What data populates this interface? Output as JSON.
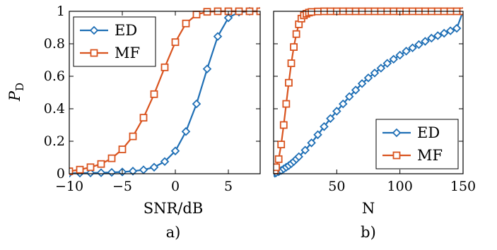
{
  "colors": {
    "ED": "#1f6fb5",
    "MF": "#d9531e"
  },
  "ylabel": "P",
  "ylabel_sub": "D",
  "chart_data": [
    {
      "type": "line",
      "sublabel": "a)",
      "xlabel": "SNR/dB",
      "xlim": [
        -10,
        8
      ],
      "ylim": [
        0,
        1
      ],
      "xticks": [
        -10,
        -5,
        0,
        5
      ],
      "xtick_labels": [
        "−10",
        "−5",
        "0",
        "5"
      ],
      "yticks": [
        0,
        0.2,
        0.4,
        0.6,
        0.8,
        1
      ],
      "ytick_labels": [
        "0",
        "0.2",
        "0.4",
        "0.6",
        "0.8",
        "1"
      ],
      "legend": "top-left",
      "grid": false,
      "series": [
        {
          "name": "ED",
          "marker": "diamond",
          "x": [
            -10,
            -9,
            -8,
            -7,
            -6,
            -5,
            -4,
            -3,
            -2,
            -1,
            0,
            1,
            2,
            3,
            4,
            5,
            6,
            7,
            8
          ],
          "y": [
            0.003,
            0.004,
            0.005,
            0.006,
            0.008,
            0.011,
            0.016,
            0.024,
            0.04,
            0.075,
            0.14,
            0.26,
            0.43,
            0.645,
            0.845,
            0.96,
            0.995,
            1,
            1
          ]
        },
        {
          "name": "MF",
          "marker": "square",
          "x": [
            -10,
            -9,
            -8,
            -7,
            -6,
            -5,
            -4,
            -3,
            -2,
            -1,
            0,
            1,
            2,
            3,
            4,
            5,
            6,
            7,
            8
          ],
          "y": [
            0.015,
            0.025,
            0.04,
            0.06,
            0.095,
            0.15,
            0.23,
            0.345,
            0.49,
            0.655,
            0.81,
            0.925,
            0.98,
            0.997,
            1,
            1,
            1,
            1,
            1
          ]
        }
      ]
    },
    {
      "type": "line",
      "sublabel": "b)",
      "xlabel": "N",
      "xlim": [
        0,
        150
      ],
      "ylim": [
        0,
        1
      ],
      "xticks": [
        50,
        100,
        150
      ],
      "xtick_labels": [
        "50",
        "100",
        "150"
      ],
      "yticks": [
        0,
        0.2,
        0.4,
        0.6,
        0.8,
        1
      ],
      "legend": "bottom-right",
      "grid": false,
      "series": [
        {
          "name": "ED",
          "marker": "diamond",
          "x": [
            1,
            2,
            4,
            6,
            8,
            10,
            12,
            14,
            16,
            18,
            20,
            25,
            30,
            35,
            40,
            45,
            50,
            55,
            60,
            65,
            70,
            75,
            80,
            85,
            90,
            95,
            100,
            105,
            110,
            115,
            120,
            125,
            130,
            135,
            140,
            145,
            150
          ],
          "y": [
            0.003,
            0.006,
            0.012,
            0.02,
            0.03,
            0.04,
            0.05,
            0.062,
            0.075,
            0.09,
            0.105,
            0.145,
            0.19,
            0.24,
            0.29,
            0.34,
            0.385,
            0.43,
            0.475,
            0.515,
            0.555,
            0.59,
            0.62,
            0.65,
            0.68,
            0.705,
            0.73,
            0.755,
            0.775,
            0.795,
            0.815,
            0.835,
            0.85,
            0.865,
            0.88,
            0.895,
            1.0
          ]
        },
        {
          "name": "MF",
          "marker": "square",
          "x": [
            1,
            2,
            4,
            6,
            8,
            10,
            12,
            14,
            16,
            18,
            20,
            22,
            24,
            26,
            28,
            30,
            35,
            40,
            45,
            50,
            55,
            60,
            65,
            70,
            75,
            80,
            85,
            90,
            95,
            100,
            105,
            110,
            115,
            120,
            125,
            130,
            135,
            140,
            145,
            150
          ],
          "y": [
            0.02,
            0.04,
            0.09,
            0.18,
            0.3,
            0.43,
            0.56,
            0.68,
            0.78,
            0.86,
            0.92,
            0.955,
            0.975,
            0.985,
            0.992,
            0.996,
            0.999,
            1,
            1,
            1,
            1,
            1,
            1,
            1,
            1,
            1,
            1,
            1,
            1,
            1,
            1,
            1,
            1,
            1,
            1,
            1,
            1,
            1,
            1,
            1
          ]
        }
      ]
    }
  ]
}
